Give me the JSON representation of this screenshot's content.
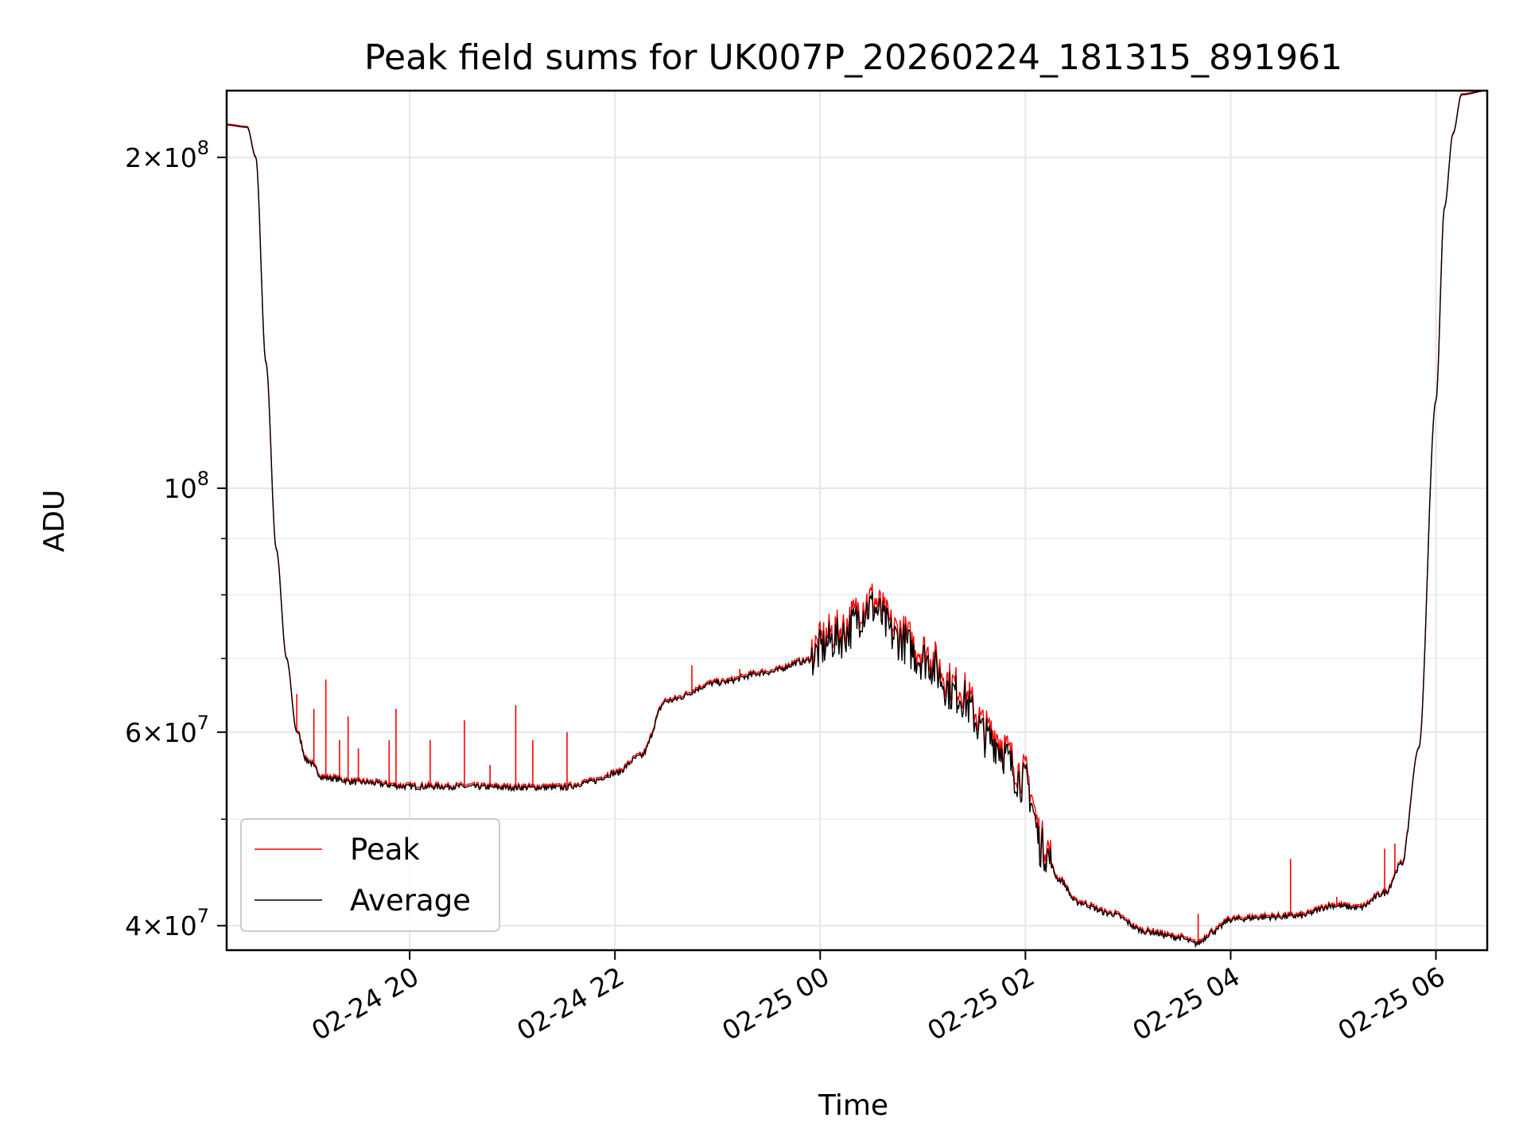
{
  "chart_data": {
    "type": "line",
    "title": "Peak field sums for UK007P_20260224_181315_891961",
    "xlabel": "Time",
    "ylabel": "ADU",
    "yscale": "log",
    "xlim": [
      "2026-02-24 18:13",
      "2026-02-25 06:30"
    ],
    "ylim": [
      38000000,
      230000000
    ],
    "grid": true,
    "legend": "lower-left",
    "x_ticks": [
      {
        "value": "2026-02-24 20:00",
        "label": "02-24 20"
      },
      {
        "value": "2026-02-24 22:00",
        "label": "02-24 22"
      },
      {
        "value": "2026-02-25 00:00",
        "label": "02-25 00"
      },
      {
        "value": "2026-02-25 02:00",
        "label": "02-25 02"
      },
      {
        "value": "2026-02-25 04:00",
        "label": "02-25 04"
      },
      {
        "value": "2026-02-25 06:00",
        "label": "02-25 06"
      }
    ],
    "y_ticks": [
      {
        "value": 40000000,
        "mant": "4",
        "exp": "7"
      },
      {
        "value": 60000000,
        "mant": "6",
        "exp": "7"
      },
      {
        "value": 100000000,
        "mant": "",
        "exp": "8"
      },
      {
        "value": 200000000,
        "mant": "2",
        "exp": "8"
      }
    ],
    "y_minor_ticks": [
      50000000,
      70000000,
      80000000,
      90000000
    ],
    "series": [
      {
        "name": "Peak",
        "color": "#ff0000",
        "spikes": [
          [
            "2026-02-24 18:54",
            65000000
          ],
          [
            "2026-02-24 19:04",
            63000000
          ],
          [
            "2026-02-24 19:11",
            67000000
          ],
          [
            "2026-02-24 19:19",
            59000000
          ],
          [
            "2026-02-24 19:24",
            62000000
          ],
          [
            "2026-02-24 19:30",
            58000000
          ],
          [
            "2026-02-24 19:48",
            59000000
          ],
          [
            "2026-02-24 19:52",
            63000000
          ],
          [
            "2026-02-24 20:12",
            59000000
          ],
          [
            "2026-02-24 20:32",
            61500000
          ],
          [
            "2026-02-24 20:47",
            56000000
          ],
          [
            "2026-02-24 21:02",
            63500000
          ],
          [
            "2026-02-24 21:12",
            59000000
          ],
          [
            "2026-02-24 21:32",
            60000000
          ],
          [
            "2026-02-24 22:45",
            69000000
          ],
          [
            "2026-02-24 23:13",
            68500000
          ],
          [
            "2026-02-25 03:41",
            41000000
          ],
          [
            "2026-02-25 04:35",
            46000000
          ],
          [
            "2026-02-25 05:02",
            42500000
          ],
          [
            "2026-02-25 05:30",
            47000000
          ],
          [
            "2026-02-25 05:36",
            47500000
          ]
        ]
      },
      {
        "name": "Average",
        "color": "#000000",
        "x": [
          "2026-02-24 18:13",
          "2026-02-24 18:25",
          "2026-02-24 18:30",
          "2026-02-24 18:36",
          "2026-02-24 18:42",
          "2026-02-24 18:48",
          "2026-02-24 18:54",
          "2026-02-24 19:00",
          "2026-02-24 19:10",
          "2026-02-24 19:30",
          "2026-02-24 20:00",
          "2026-02-24 20:30",
          "2026-02-24 21:00",
          "2026-02-24 21:30",
          "2026-02-24 21:45",
          "2026-02-24 22:00",
          "2026-02-24 22:15",
          "2026-02-24 22:30",
          "2026-02-24 23:00",
          "2026-02-24 23:30",
          "2026-02-24 23:50",
          "2026-02-25 00:10",
          "2026-02-25 00:30",
          "2026-02-25 00:45",
          "2026-02-25 01:00",
          "2026-02-25 01:20",
          "2026-02-25 01:40",
          "2026-02-25 02:00",
          "2026-02-25 02:10",
          "2026-02-25 02:20",
          "2026-02-25 02:30",
          "2026-02-25 02:50",
          "2026-02-25 03:10",
          "2026-02-25 03:30",
          "2026-02-25 03:40",
          "2026-02-25 03:50",
          "2026-02-25 04:00",
          "2026-02-25 04:20",
          "2026-02-25 04:40",
          "2026-02-25 05:00",
          "2026-02-25 05:15",
          "2026-02-25 05:30",
          "2026-02-25 05:40",
          "2026-02-25 05:50",
          "2026-02-25 06:00",
          "2026-02-25 06:05",
          "2026-02-25 06:10",
          "2026-02-25 06:15",
          "2026-02-25 06:30"
        ],
        "y": [
          214000000,
          213000000,
          200000000,
          130000000,
          88000000,
          70000000,
          60000000,
          56500000,
          54500000,
          54000000,
          53500000,
          53500000,
          53400000,
          53400000,
          54000000,
          55000000,
          57000000,
          64000000,
          66500000,
          68000000,
          69500000,
          73000000,
          78000000,
          73000000,
          70000000,
          65000000,
          59000000,
          54000000,
          47000000,
          44000000,
          42000000,
          41000000,
          39500000,
          39000000,
          38500000,
          39500000,
          40500000,
          40700000,
          40800000,
          41700000,
          41500000,
          42800000,
          45500000,
          58000000,
          120000000,
          180000000,
          210000000,
          228000000,
          230000000
        ]
      }
    ]
  }
}
